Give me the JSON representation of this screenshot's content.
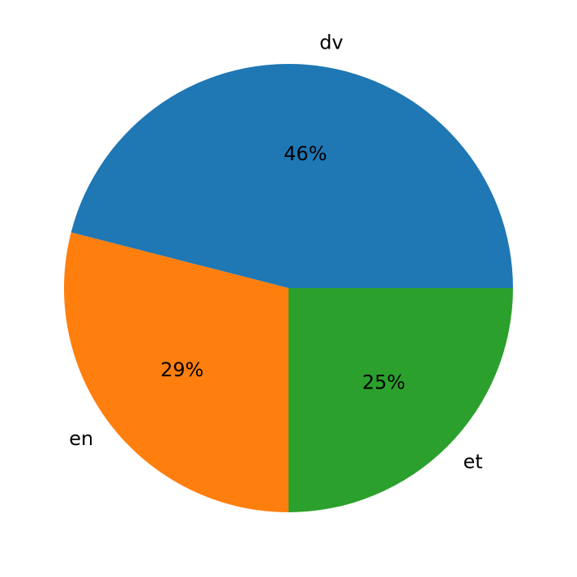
{
  "chart_data": {
    "type": "pie",
    "categories": [
      "dv",
      "en",
      "et"
    ],
    "values": [
      46,
      29,
      25
    ],
    "value_labels": [
      "46%",
      "29%",
      "25%"
    ],
    "colors": [
      "#1f77b4",
      "#ff7f0e",
      "#2ca02c"
    ],
    "start_angle": 0
  }
}
